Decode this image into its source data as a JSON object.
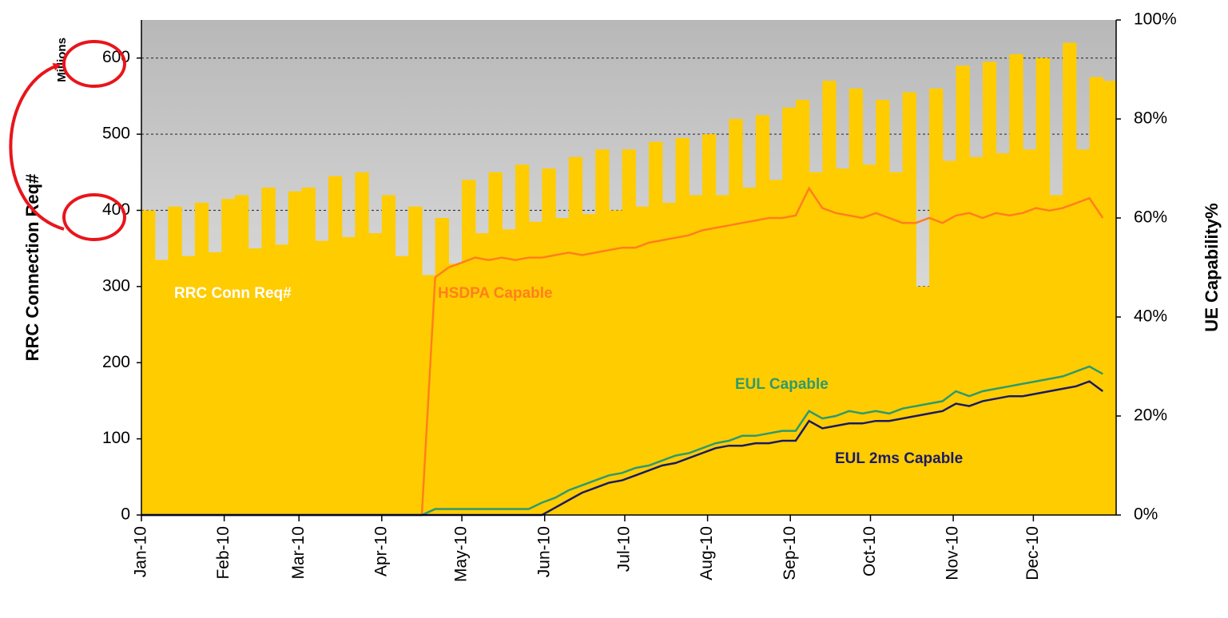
{
  "chart_data": {
    "type": "bar-line",
    "y_label": "RRC Connection Req#",
    "y_unit": "Millions",
    "y2_label": "UE Capability%",
    "xlim": [
      0,
      365
    ],
    "xticks": [
      {
        "value": 0,
        "label": "Jan-10"
      },
      {
        "value": 31,
        "label": "Feb-10"
      },
      {
        "value": 59,
        "label": "Mar-10"
      },
      {
        "value": 90,
        "label": "Apr-10"
      },
      {
        "value": 120,
        "label": "May-10"
      },
      {
        "value": 151,
        "label": "Jun-10"
      },
      {
        "value": 181,
        "label": "Jul-10"
      },
      {
        "value": 212,
        "label": "Aug-10"
      },
      {
        "value": 243,
        "label": "Sep-10"
      },
      {
        "value": 273,
        "label": "Oct-10"
      },
      {
        "value": 304,
        "label": "Nov-10"
      },
      {
        "value": 334,
        "label": "Dec-10"
      }
    ],
    "ylim": [
      0,
      650
    ],
    "yticks": [
      0,
      100,
      200,
      300,
      400,
      500,
      600
    ],
    "y2lim": [
      0,
      100
    ],
    "y2ticks": [
      {
        "value": 0,
        "label": "0%"
      },
      {
        "value": 20,
        "label": "20%"
      },
      {
        "value": 40,
        "label": "40%"
      },
      {
        "value": 60,
        "label": "60%"
      },
      {
        "value": 80,
        "label": "80%"
      },
      {
        "value": 100,
        "label": "100%"
      }
    ],
    "grid": true,
    "x": [
      0,
      5,
      10,
      15,
      20,
      25,
      30,
      35,
      40,
      45,
      50,
      55,
      60,
      65,
      70,
      75,
      80,
      85,
      90,
      95,
      100,
      105,
      110,
      115,
      120,
      125,
      130,
      135,
      140,
      145,
      150,
      155,
      160,
      165,
      170,
      175,
      180,
      185,
      190,
      195,
      200,
      205,
      210,
      215,
      220,
      225,
      230,
      235,
      240,
      245,
      250,
      255,
      260,
      265,
      270,
      275,
      280,
      285,
      290,
      295,
      300,
      305,
      310,
      315,
      320,
      325,
      330,
      335,
      340,
      345,
      350,
      355,
      360
    ],
    "series": [
      {
        "name": "RRC Conn Req#",
        "type": "bar",
        "color": "#ffcc00",
        "values": [
          400,
          335,
          405,
          340,
          410,
          345,
          415,
          420,
          350,
          430,
          355,
          425,
          430,
          360,
          445,
          365,
          450,
          370,
          420,
          340,
          405,
          315,
          390,
          330,
          440,
          370,
          450,
          375,
          460,
          385,
          455,
          390,
          470,
          395,
          480,
          400,
          480,
          405,
          490,
          410,
          495,
          420,
          500,
          420,
          520,
          430,
          525,
          440,
          535,
          545,
          450,
          570,
          455,
          560,
          460,
          545,
          450,
          555,
          300,
          560,
          465,
          590,
          470,
          595,
          475,
          605,
          480,
          600,
          420,
          620,
          480,
          575,
          570
        ]
      },
      {
        "name": "HSDPA Capable",
        "type": "line",
        "axis": "y2",
        "color": "#ff7f1e",
        "values": [
          0,
          0,
          0,
          0,
          0,
          0,
          0,
          0,
          0,
          0,
          0,
          0,
          0,
          0,
          0,
          0,
          0,
          0,
          0,
          0,
          0,
          0,
          48,
          50,
          51,
          52,
          51.5,
          52,
          51.5,
          52,
          52,
          52.5,
          53,
          52.5,
          53,
          53.5,
          54,
          54,
          55,
          55.5,
          56,
          56.5,
          57.5,
          58,
          58.5,
          59,
          59.5,
          60,
          60,
          60.5,
          66,
          62,
          61,
          60.5,
          60,
          61,
          60,
          59,
          59,
          60,
          59,
          60.5,
          61,
          60,
          61,
          60.5,
          61,
          62,
          61.5,
          62,
          63,
          64,
          60
        ]
      },
      {
        "name": "EUL Capable",
        "type": "line",
        "axis": "y2",
        "color": "#2e9a6e",
        "values": [
          0,
          0,
          0,
          0,
          0,
          0,
          0,
          0,
          0,
          0,
          0,
          0,
          0,
          0,
          0,
          0,
          0,
          0,
          0,
          0,
          0,
          0,
          1.2,
          1.2,
          1.2,
          1.2,
          1.2,
          1.2,
          1.2,
          1.2,
          2.5,
          3.5,
          5,
          6,
          7,
          8,
          8.5,
          9.5,
          10,
          11,
          12,
          12.5,
          13.5,
          14.5,
          15,
          16,
          16,
          16.5,
          17,
          17,
          21,
          19.5,
          20,
          21,
          20.5,
          21,
          20.5,
          21.5,
          22,
          22.5,
          23,
          25,
          24,
          25,
          25.5,
          26,
          26.5,
          27,
          27.5,
          28,
          29,
          30,
          28.5
        ]
      },
      {
        "name": "EUL 2ms Capable",
        "type": "line",
        "axis": "y2",
        "color": "#1a1a66",
        "values": [
          0,
          0,
          0,
          0,
          0,
          0,
          0,
          0,
          0,
          0,
          0,
          0,
          0,
          0,
          0,
          0,
          0,
          0,
          0,
          0,
          0,
          0,
          0,
          0,
          0,
          0,
          0,
          0,
          0,
          0,
          0,
          1.5,
          3,
          4.5,
          5.5,
          6.5,
          7,
          8,
          9,
          10,
          10.5,
          11.5,
          12.5,
          13.5,
          14,
          14,
          14.5,
          14.5,
          15,
          15,
          19,
          17.5,
          18,
          18.5,
          18.5,
          19,
          19,
          19.5,
          20,
          20.5,
          21,
          22.5,
          22,
          23,
          23.5,
          24,
          24,
          24.5,
          25,
          25.5,
          26,
          27,
          25
        ]
      }
    ]
  }
}
